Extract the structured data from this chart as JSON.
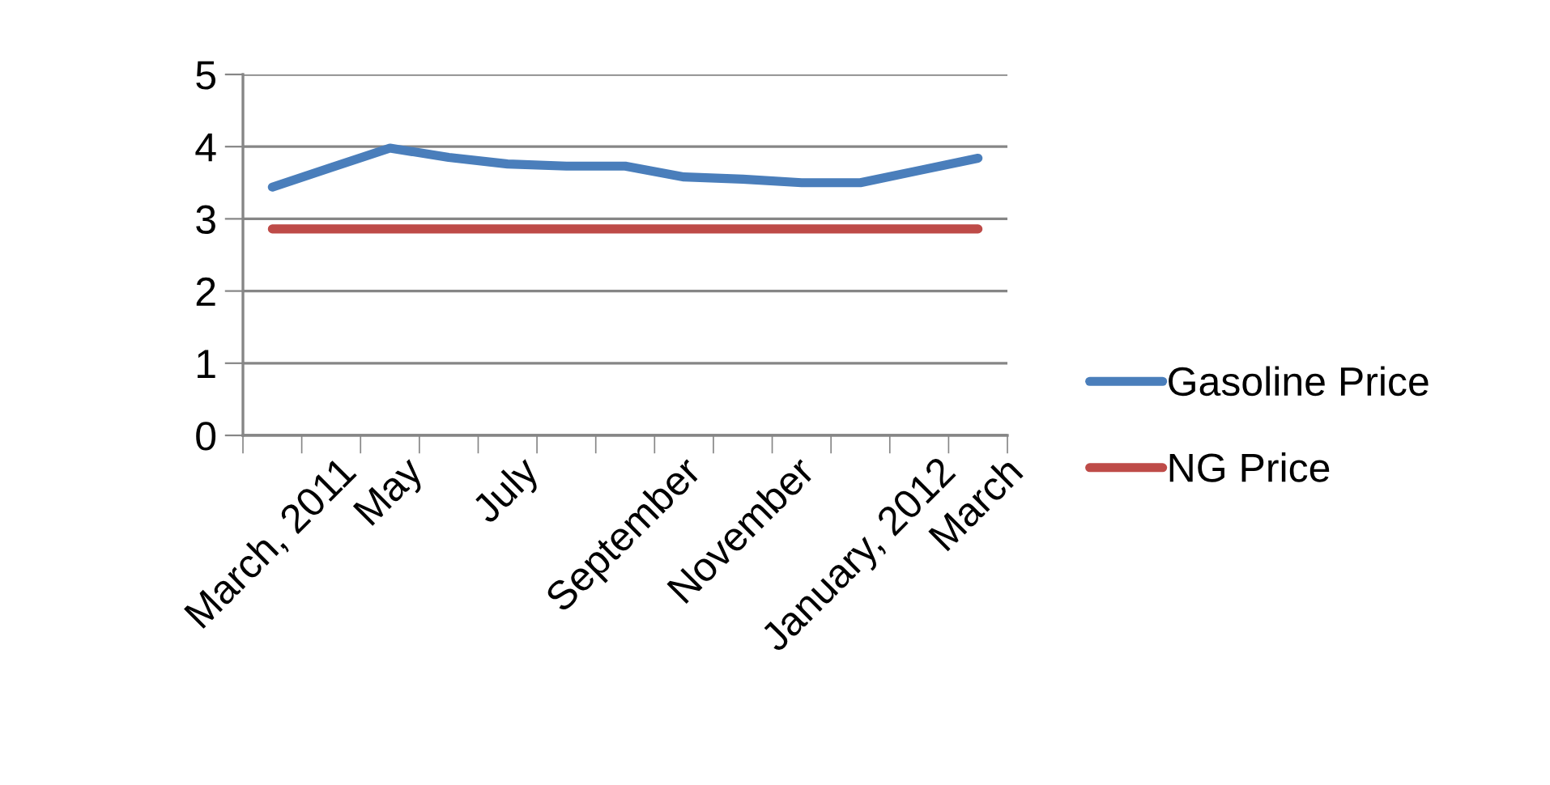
{
  "chart_data": {
    "type": "line",
    "categories": [
      "March, 2011",
      null,
      "May",
      null,
      "July",
      null,
      "September",
      null,
      "November",
      null,
      "January, 2012",
      null,
      "March"
    ],
    "series": [
      {
        "name": "Gasoline Price",
        "color": "#4a7ebb",
        "values": [
          3.44,
          3.71,
          3.98,
          3.85,
          3.76,
          3.73,
          3.73,
          3.58,
          3.55,
          3.5,
          3.5,
          3.67,
          3.84
        ]
      },
      {
        "name": "NG Price",
        "color": "#be4b48",
        "values": [
          2.86,
          2.86,
          2.86,
          2.86,
          2.86,
          2.86,
          2.86,
          2.86,
          2.86,
          2.86,
          2.86,
          2.86,
          2.86
        ]
      }
    ],
    "ylim": [
      0,
      5
    ],
    "yticks": [
      0,
      1,
      2,
      3,
      4,
      5
    ],
    "grid": "y",
    "legend": "right",
    "marker": "none",
    "line_style": "solid"
  }
}
